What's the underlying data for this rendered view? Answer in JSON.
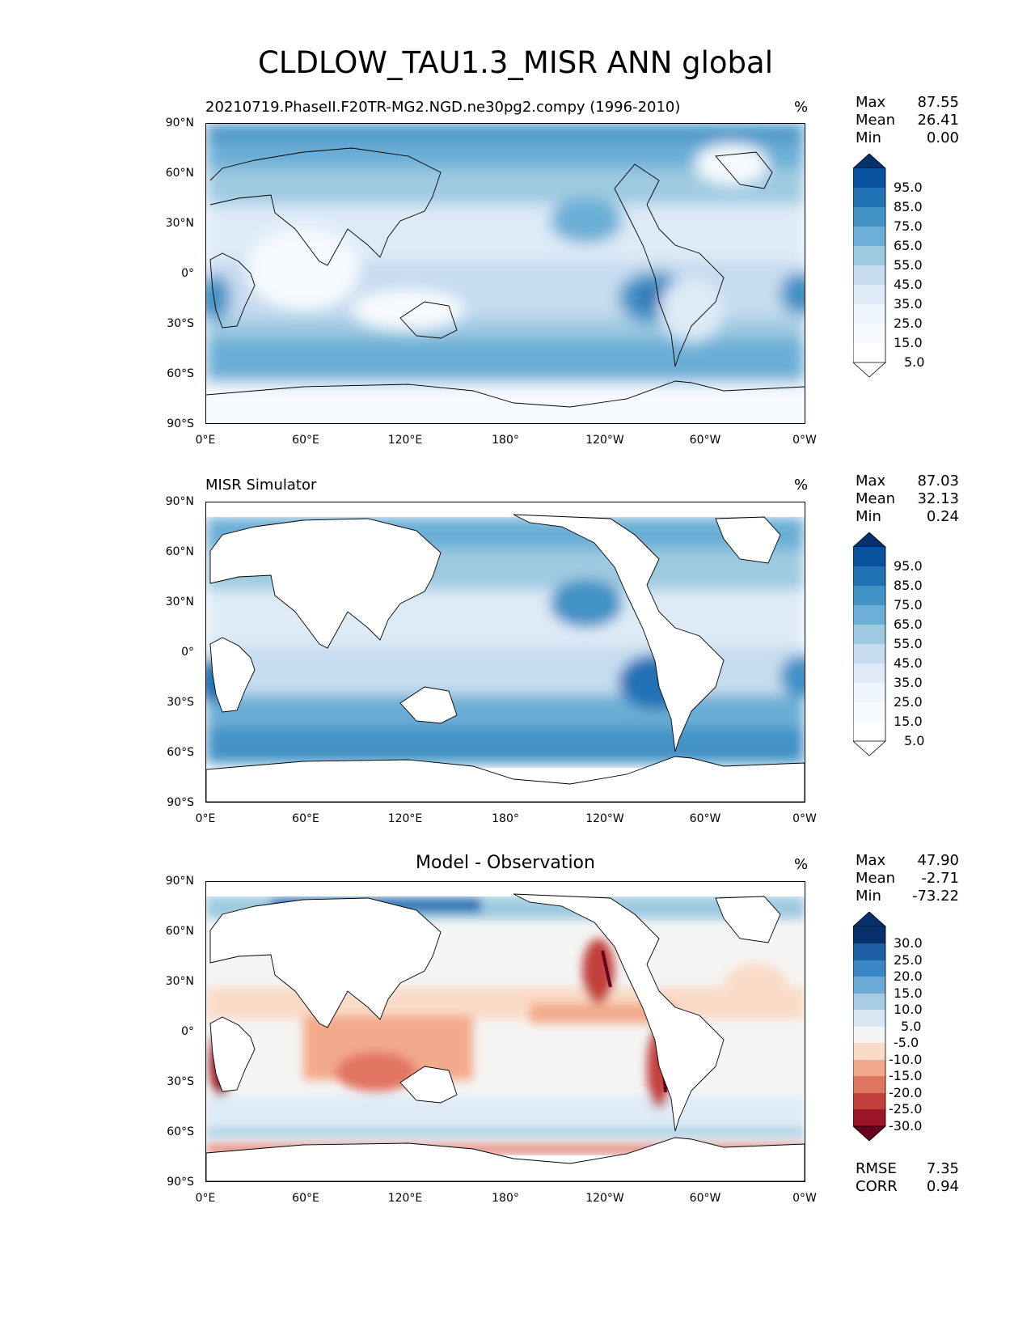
{
  "main_title": "CLDLOW_TAU1.3_MISR ANN global",
  "unit": "%",
  "y_ticks": [
    "90°N",
    "60°N",
    "30°N",
    "0°",
    "30°S",
    "60°S",
    "90°S"
  ],
  "x_ticks": [
    "0°E",
    "60°E",
    "120°E",
    "180°",
    "120°W",
    "60°W",
    "0°W"
  ],
  "panels": [
    {
      "title": "20210719.PhaseII.F20TR-MG2.NGD.ne30pg2.compy (1996-2010)",
      "title_style": "left",
      "stats": [
        {
          "label": "Max",
          "value": "87.55"
        },
        {
          "label": "Mean",
          "value": "26.41"
        },
        {
          "label": "Min",
          "value": "0.00"
        }
      ],
      "colorbar": {
        "labels": [
          "95.0",
          "85.0",
          "75.0",
          "65.0",
          "55.0",
          "45.0",
          "35.0",
          "25.0",
          "15.0",
          "5.0"
        ],
        "colors_top_to_bottom": [
          "#08306b",
          "#08519c",
          "#2171b5",
          "#4292c6",
          "#6baed6",
          "#9ecae1",
          "#c6dbef",
          "#deebf7",
          "#eef5fc",
          "#f7fbff"
        ]
      }
    },
    {
      "title": "MISR Simulator",
      "title_style": "left",
      "stats": [
        {
          "label": "Max",
          "value": "87.03"
        },
        {
          "label": "Mean",
          "value": "32.13"
        },
        {
          "label": "Min",
          "value": "0.24"
        }
      ],
      "colorbar": {
        "labels": [
          "95.0",
          "85.0",
          "75.0",
          "65.0",
          "55.0",
          "45.0",
          "35.0",
          "25.0",
          "15.0",
          "5.0"
        ],
        "colors_top_to_bottom": [
          "#08306b",
          "#08519c",
          "#2171b5",
          "#4292c6",
          "#6baed6",
          "#9ecae1",
          "#c6dbef",
          "#deebf7",
          "#eef5fc",
          "#f7fbff"
        ]
      }
    },
    {
      "title": "Model - Observation",
      "title_style": "center",
      "stats": [
        {
          "label": "Max",
          "value": "47.90"
        },
        {
          "label": "Mean",
          "value": "-2.71"
        },
        {
          "label": "Min",
          "value": "-73.22"
        }
      ],
      "colorbar": {
        "labels": [
          "30.0",
          "25.0",
          "20.0",
          "15.0",
          "10.0",
          "5.0",
          "-5.0",
          "-10.0",
          "-15.0",
          "-20.0",
          "-25.0",
          "-30.0"
        ],
        "colors_top_to_bottom": [
          "#08306b",
          "#1f5fa8",
          "#3a86c2",
          "#6aaad4",
          "#a6cbe3",
          "#d6e7f2",
          "#f5f5f5",
          "#fadbc8",
          "#f3aa8a",
          "#e27560",
          "#c23f3b",
          "#9a1526",
          "#67001f"
        ]
      },
      "metrics": [
        {
          "label": "RMSE",
          "value": "7.35"
        },
        {
          "label": "CORR",
          "value": "0.94"
        }
      ]
    }
  ]
}
